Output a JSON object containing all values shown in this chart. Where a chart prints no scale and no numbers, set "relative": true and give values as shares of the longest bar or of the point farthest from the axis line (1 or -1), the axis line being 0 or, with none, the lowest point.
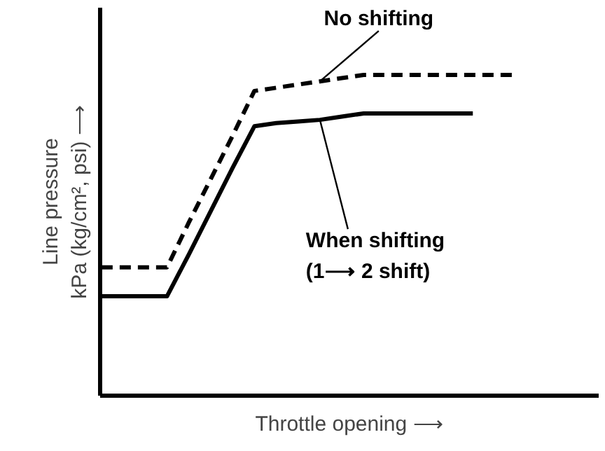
{
  "chart_data": {
    "type": "line",
    "relative": true,
    "xlabel": "Throttle opening ⟶",
    "ylabel": "Line pressure\nkPa (kg/cm², psi) ⟶",
    "grid": false,
    "categories": [
      null,
      null,
      null,
      null,
      null,
      null,
      null,
      null,
      null,
      null,
      null,
      null,
      null,
      null,
      null,
      null,
      null,
      null,
      null,
      null
    ],
    "series": [
      {
        "color": "#000000",
        "line_style": "dashed",
        "values": [
          0.4,
          0.4,
          0.4,
          0.4,
          0.54,
          0.675,
          0.81,
          0.95,
          0.96,
          0.97,
          0.98,
          0.99,
          1,
          1,
          1,
          1,
          1,
          1,
          1,
          1
        ]
      },
      {
        "color": "#000000",
        "line_style": "solid",
        "values": [
          0.31,
          0.31,
          0.31,
          0.31,
          0.44,
          0.575,
          0.71,
          0.84,
          0.85,
          0.855,
          0.86,
          0.87,
          0.88,
          0.88,
          0.88,
          0.88,
          0.88,
          0.88,
          null,
          null
        ]
      }
    ],
    "annotations": [
      "No shifting",
      "When shifting\n(1⟶ 2 shift)"
    ]
  }
}
